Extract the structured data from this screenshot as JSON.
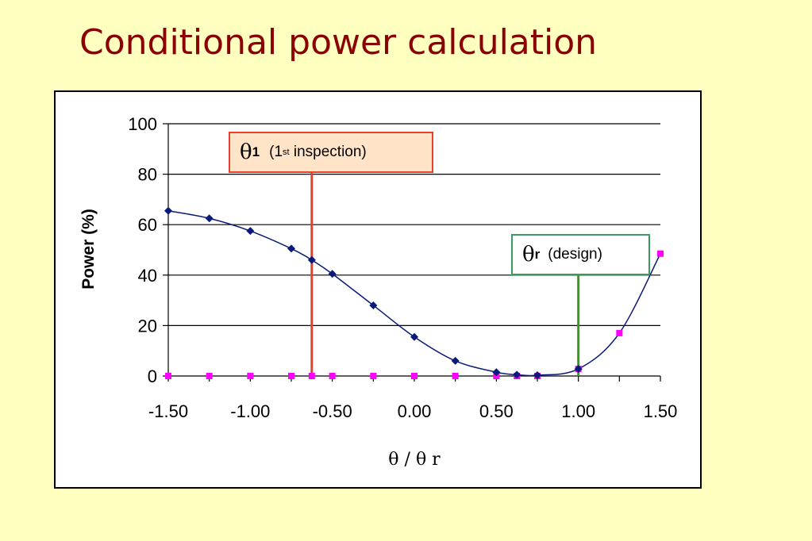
{
  "title": "Conditional power calculation",
  "colors": {
    "background": "#ffffc0",
    "title": "#8b0000",
    "series_blue": "#0a1a7a",
    "series_magenta": "#ff00ff",
    "marker_theta1": "#e8402a",
    "marker_thetar": "#3a9a20"
  },
  "callouts": {
    "theta1": {
      "symbol": "θ",
      "sub": "1",
      "paren_open": "(1",
      "sup": "st",
      "rest": " inspection)"
    },
    "thetar": {
      "symbol": "θ",
      "sub": "r",
      "text": "(design)"
    }
  },
  "chart_data": {
    "type": "line",
    "ylabel": "Power (%)",
    "xlabel": "θ / θ r",
    "xlim": [
      -1.5,
      1.5
    ],
    "ylim": [
      0,
      100
    ],
    "x_ticks": [
      "-1.50",
      "-1.00",
      "-0.50",
      "0.00",
      "0.50",
      "1.00",
      "1.50"
    ],
    "y_ticks": [
      "0",
      "20",
      "40",
      "60",
      "80",
      "100"
    ],
    "grid": "horizontal",
    "series": [
      {
        "x": [
          -1.5,
          -1.25,
          -1.0,
          -0.75,
          -0.625,
          -0.5,
          -0.25,
          0.0,
          0.25,
          0.5,
          0.625,
          0.75,
          1.0
        ],
        "y": [
          65.5,
          62.5,
          57.5,
          50.5,
          46.0,
          40.5,
          28.0,
          15.5,
          6.0,
          1.5,
          0.5,
          0.3,
          2.8
        ]
      },
      {
        "x": [
          -1.5,
          -1.25,
          -1.0,
          -0.75,
          -0.625,
          -0.5,
          -0.25,
          0.0,
          0.25,
          0.5,
          0.625,
          0.75,
          1.0,
          1.25,
          1.5
        ],
        "y": [
          0,
          0,
          0,
          0,
          0,
          0,
          0,
          0,
          0,
          0,
          0,
          0,
          2.8,
          17.0,
          48.5
        ]
      }
    ],
    "reference_lines": [
      {
        "x": -0.625
      },
      {
        "x": 1.0
      }
    ]
  }
}
